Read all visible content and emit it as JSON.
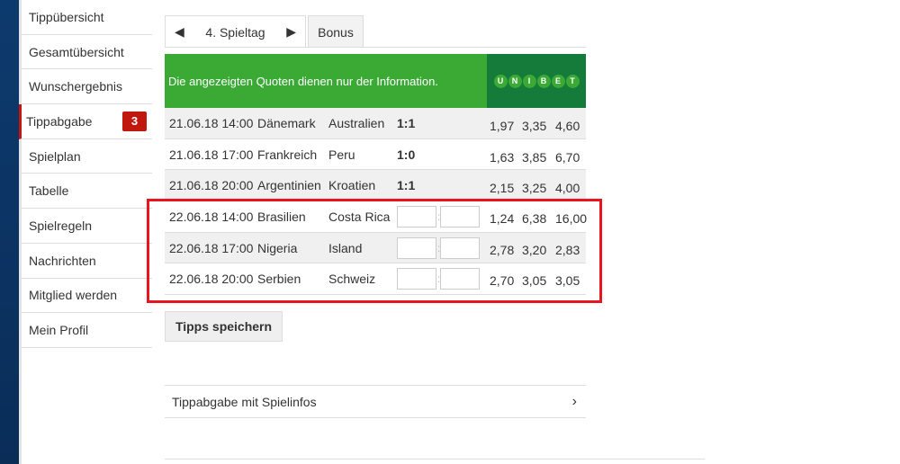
{
  "sidebar": {
    "items": [
      {
        "label": "Tippübersicht"
      },
      {
        "label": "Gesamtübersicht"
      },
      {
        "label": "Wunschergebnis"
      },
      {
        "label": "Tippabgabe",
        "badge": "3",
        "active": true
      },
      {
        "label": "Spielplan"
      },
      {
        "label": "Tabelle"
      },
      {
        "label": "Spielregeln"
      },
      {
        "label": "Nachrichten"
      },
      {
        "label": "Mitglied werden"
      },
      {
        "label": "Mein Profil"
      }
    ]
  },
  "tabs": {
    "matchday": "4. Spieltag",
    "bonus": "Bonus",
    "prev_icon": "◀",
    "next_icon": "▶"
  },
  "banner": {
    "text": "Die angezeigten Quoten dienen nur der Information.",
    "logo_letters": [
      "U",
      "N",
      "I",
      "B",
      "E",
      "T"
    ]
  },
  "matches": [
    {
      "date": "21.06.18 14:00",
      "home": "Dänemark",
      "away": "Australien",
      "result": "1:1",
      "odds": [
        "1,97",
        "3,35",
        "4,60"
      ]
    },
    {
      "date": "21.06.18 17:00",
      "home": "Frankreich",
      "away": "Peru",
      "result": "1:0",
      "odds": [
        "1,63",
        "3,85",
        "6,70"
      ]
    },
    {
      "date": "21.06.18 20:00",
      "home": "Argentinien",
      "away": "Kroatien",
      "result": "1:1",
      "odds": [
        "2,15",
        "3,25",
        "4,00"
      ]
    },
    {
      "date": "22.06.18 14:00",
      "home": "Brasilien",
      "away": "Costa Rica",
      "result": null,
      "odds": [
        "1,24",
        "6,38",
        "16,00"
      ]
    },
    {
      "date": "22.06.18 17:00",
      "home": "Nigeria",
      "away": "Island",
      "result": null,
      "odds": [
        "2,78",
        "3,20",
        "2,83"
      ]
    },
    {
      "date": "22.06.18 20:00",
      "home": "Serbien",
      "away": "Schweiz",
      "result": null,
      "odds": [
        "2,70",
        "3,05",
        "3,05"
      ]
    }
  ],
  "colon": ":",
  "save_label": "Tipps speichern",
  "info_link": {
    "label": "Tippabgabe mit Spielinfos",
    "chevron": "›"
  },
  "colors": {
    "green": "#3aaa35",
    "dark_green": "#147b3a",
    "badge_red": "#c0170f",
    "highlight": "#e8141e"
  }
}
